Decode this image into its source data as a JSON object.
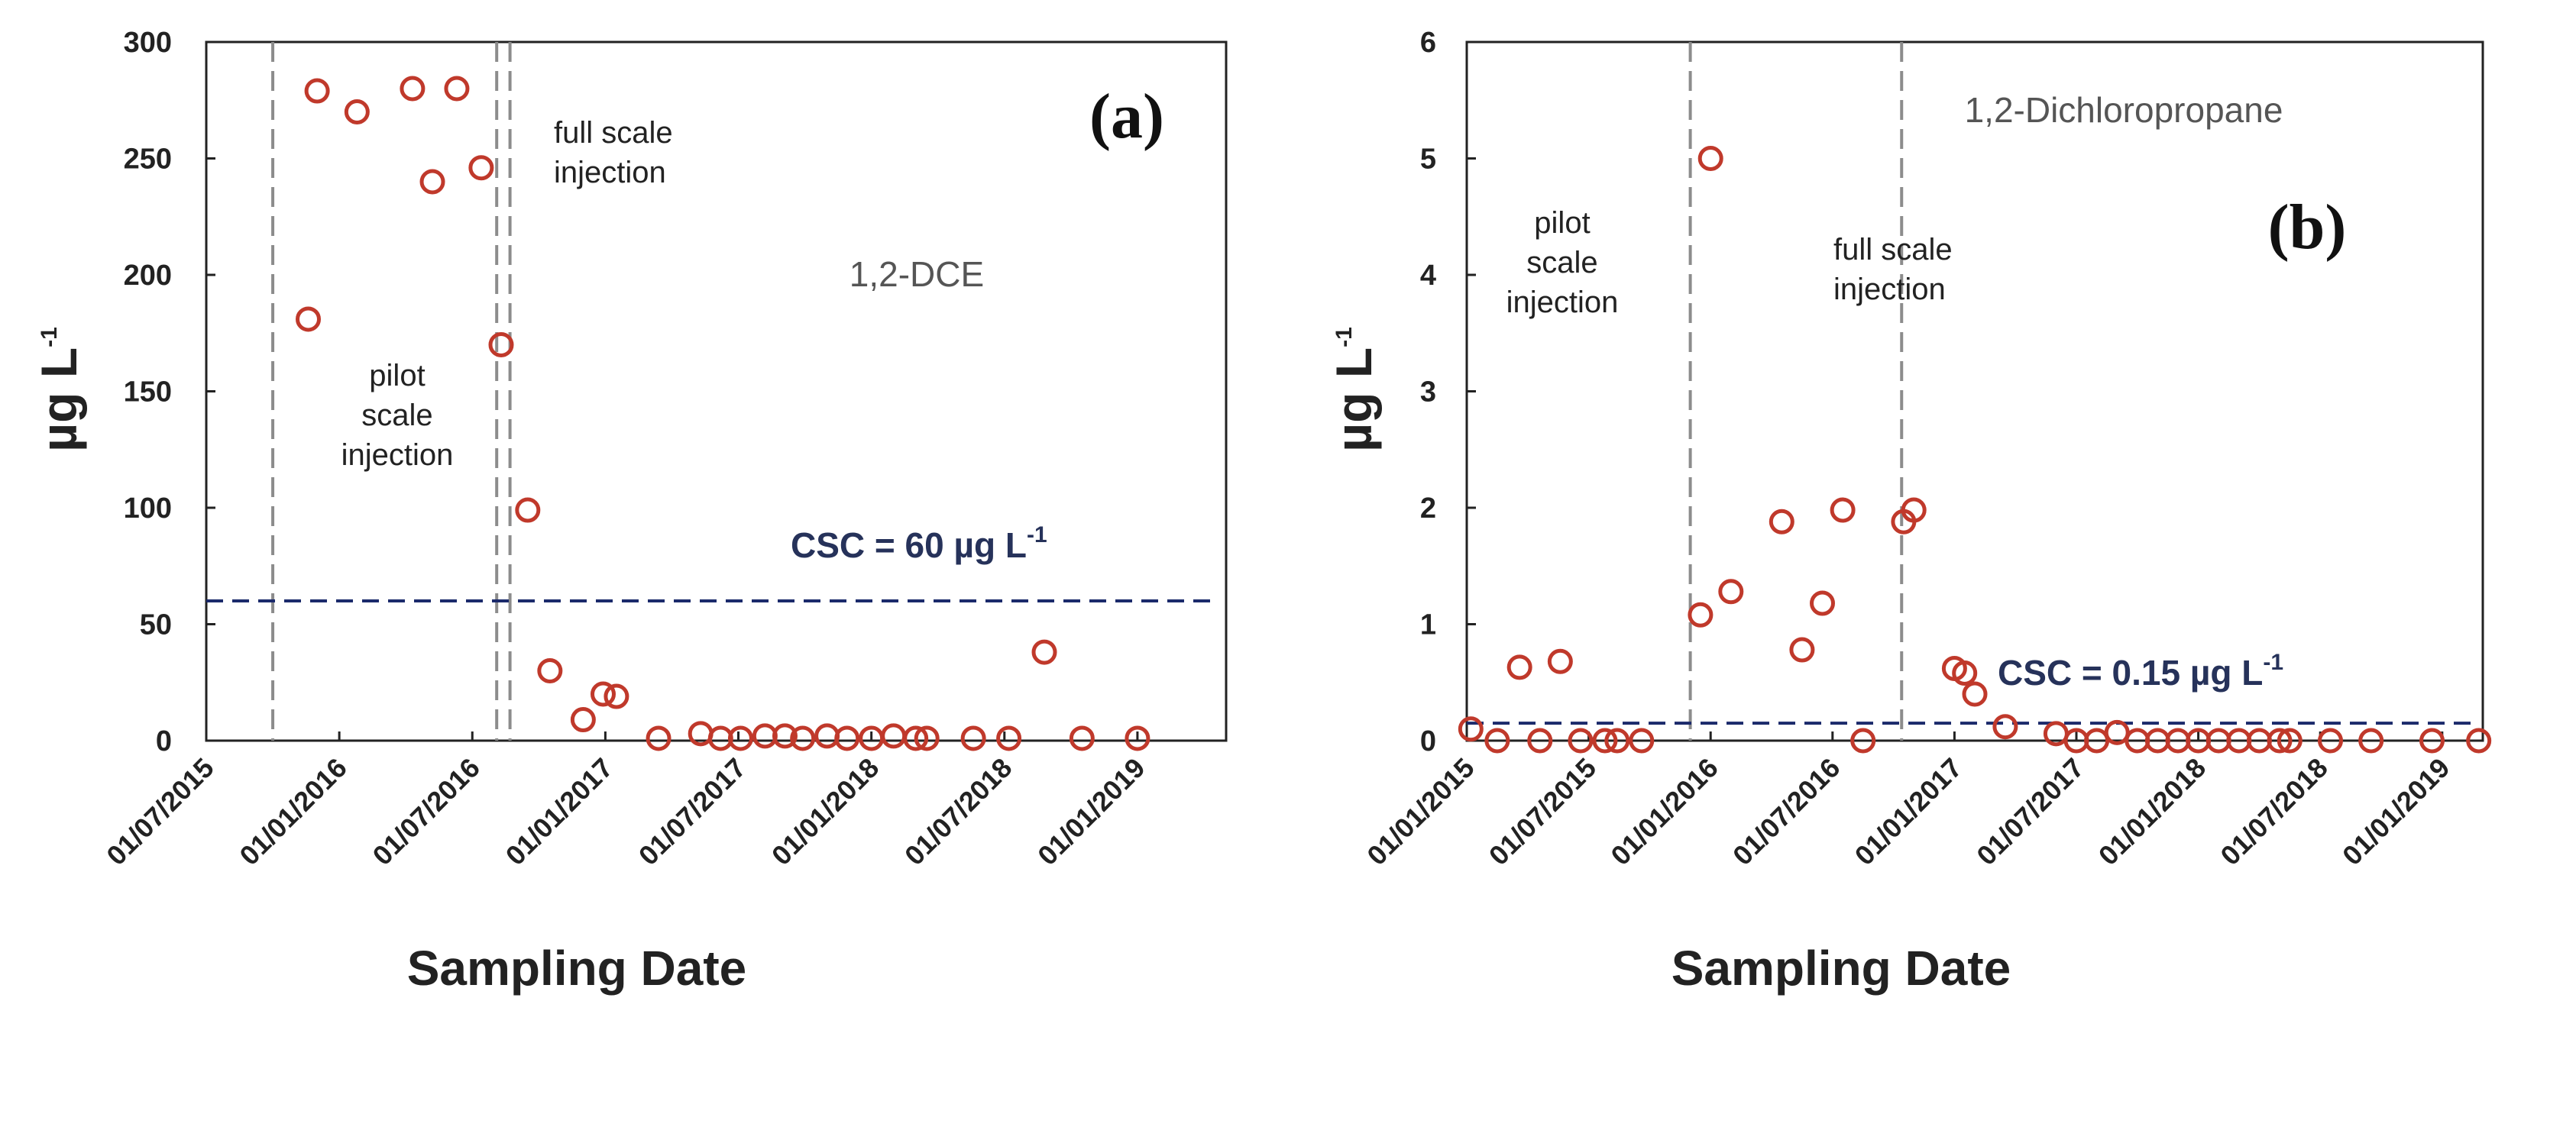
{
  "chart_data": [
    {
      "type": "scatter",
      "panel_label": "(a)",
      "compound": "1,2-DCE",
      "xlabel": "Sampling Date",
      "ylabel": "µg L",
      "ylabel_sup": "-1",
      "ylim": [
        0,
        300
      ],
      "yticks": [
        "0",
        "50",
        "100",
        "150",
        "200",
        "250",
        "300"
      ],
      "xticks": [
        "01/07/2015",
        "01/01/2016",
        "01/07/2016",
        "01/01/2017",
        "01/07/2017",
        "01/01/2018",
        "01/07/2018",
        "01/01/2019"
      ],
      "xlim_months": [
        0,
        46
      ],
      "threshold": {
        "value": 60,
        "label": "CSC = 60 µg L",
        "label_sup": "-1"
      },
      "injection_lines": [
        3,
        13.1,
        13.7
      ],
      "annotations": [
        {
          "lines": [
            "full scale",
            "injection"
          ]
        },
        {
          "lines": [
            "pilot",
            "scale",
            "injection"
          ]
        }
      ],
      "series": [
        {
          "name": "1,2-DCE",
          "points": [
            [
              4.6,
              181
            ],
            [
              5.0,
              279
            ],
            [
              6.8,
              270
            ],
            [
              9.3,
              280
            ],
            [
              10.2,
              240
            ],
            [
              11.3,
              280
            ],
            [
              12.4,
              246
            ],
            [
              13.3,
              170
            ],
            [
              14.5,
              99
            ],
            [
              15.5,
              30
            ],
            [
              17.0,
              9
            ],
            [
              17.9,
              20
            ],
            [
              18.5,
              19
            ],
            [
              20.4,
              1
            ],
            [
              22.3,
              3
            ],
            [
              23.2,
              1
            ],
            [
              24.1,
              1
            ],
            [
              25.2,
              2
            ],
            [
              26.1,
              2
            ],
            [
              26.9,
              1
            ],
            [
              28.0,
              2
            ],
            [
              28.9,
              1
            ],
            [
              30.0,
              1
            ],
            [
              31.0,
              2
            ],
            [
              32.0,
              1
            ],
            [
              32.5,
              1
            ],
            [
              34.6,
              1
            ],
            [
              36.2,
              1
            ],
            [
              37.8,
              38
            ],
            [
              39.5,
              1
            ],
            [
              42.0,
              1
            ]
          ]
        }
      ]
    },
    {
      "type": "scatter",
      "panel_label": "(b)",
      "compound": "1,2-Dichloropropane",
      "xlabel": "Sampling Date",
      "ylabel": "µg L",
      "ylabel_sup": "-1",
      "ylim": [
        0,
        6
      ],
      "yticks": [
        "0",
        "1",
        "2",
        "3",
        "4",
        "5",
        "6"
      ],
      "xticks": [
        "01/01/2015",
        "01/07/2015",
        "01/01/2016",
        "01/07/2016",
        "01/01/2017",
        "01/07/2017",
        "01/01/2018",
        "01/07/2018",
        "01/01/2019"
      ],
      "xlim_months": [
        0,
        50
      ],
      "threshold": {
        "value": 0.15,
        "label": "CSC = 0.15 µg L",
        "label_sup": "-1"
      },
      "injection_lines": [
        11,
        21.4
      ],
      "annotations": [
        {
          "lines": [
            "pilot",
            "scale",
            "injection"
          ]
        },
        {
          "lines": [
            "full scale",
            "injection"
          ]
        }
      ],
      "series": [
        {
          "name": "1,2-Dichloropropane",
          "points": [
            [
              0.2,
              0.1
            ],
            [
              1.5,
              0
            ],
            [
              2.6,
              0.63
            ],
            [
              3.6,
              0
            ],
            [
              4.6,
              0.68
            ],
            [
              5.6,
              0
            ],
            [
              6.8,
              0
            ],
            [
              7.4,
              0
            ],
            [
              8.6,
              0
            ],
            [
              11.5,
              1.08
            ],
            [
              12.0,
              5.0
            ],
            [
              13.0,
              1.28
            ],
            [
              15.5,
              1.88
            ],
            [
              16.5,
              0.78
            ],
            [
              17.5,
              1.18
            ],
            [
              18.5,
              1.98
            ],
            [
              19.5,
              0
            ],
            [
              21.5,
              1.88
            ],
            [
              22.0,
              1.98
            ],
            [
              24.0,
              0.62
            ],
            [
              24.5,
              0.58
            ],
            [
              25.0,
              0.4
            ],
            [
              26.5,
              0.12
            ],
            [
              29.0,
              0.06
            ],
            [
              30.0,
              0
            ],
            [
              31.0,
              0
            ],
            [
              32.0,
              0.07
            ],
            [
              33.0,
              0
            ],
            [
              34.0,
              0
            ],
            [
              35.0,
              0
            ],
            [
              36.0,
              0
            ],
            [
              37.0,
              0
            ],
            [
              38.0,
              0
            ],
            [
              39.0,
              0
            ],
            [
              40.0,
              0
            ],
            [
              40.5,
              0
            ],
            [
              42.5,
              0
            ],
            [
              44.5,
              0
            ],
            [
              47.5,
              0
            ],
            [
              49.8,
              0
            ]
          ]
        }
      ]
    }
  ],
  "colors": {
    "point": "#c0392b",
    "csc_line": "#1b2a6b",
    "injection_line": "#8c8c8c",
    "axis": "#222222"
  }
}
